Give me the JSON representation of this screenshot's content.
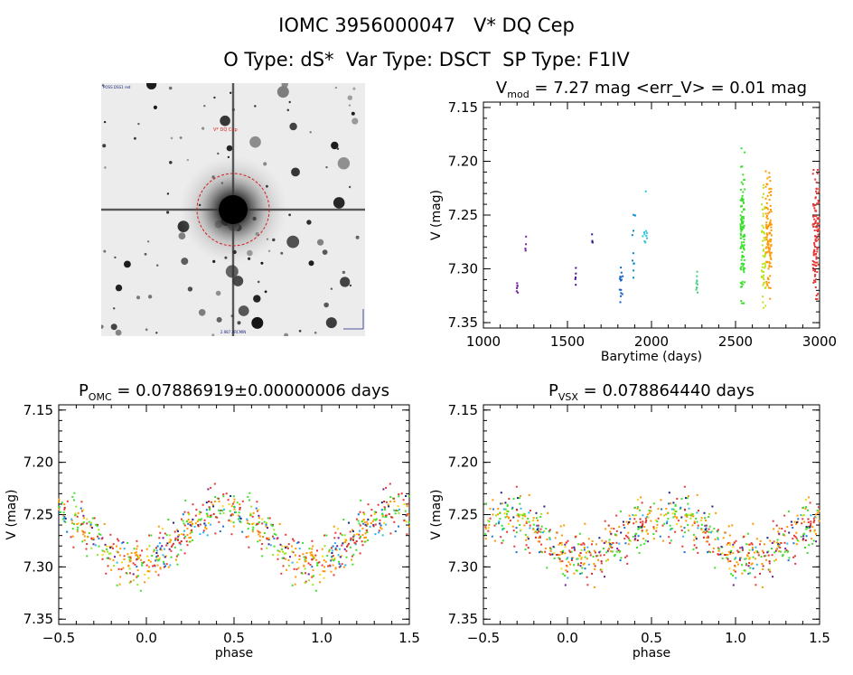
{
  "header": {
    "title": "IOMC 3956000047   V* DQ Cep",
    "subtitle": "O Type: dS*  Var Type: DSCT  SP Type: F1IV"
  },
  "finder": {
    "target_label": "V* DQ Cep",
    "corner_top_left": "POSS DSS1 red",
    "bottom_label": "2.987 ARCMIN",
    "target_marker_color": "#d42020"
  },
  "chart_data": [
    {
      "id": "lightcurve",
      "type": "scatter",
      "title": "V_mod = 7.27 mag <err_V> = 0.01 mag",
      "title_parts": {
        "pre": "V",
        "sub": "mod",
        "post": " = 7.27 mag <err_V> = 0.01 mag"
      },
      "xlabel": "Barytime (days)",
      "ylabel": "V (mag)",
      "xlim": [
        1000,
        3000
      ],
      "ylim": [
        7.355,
        7.145
      ],
      "y_inverted": true,
      "xticks": [
        1000,
        1500,
        2000,
        2500,
        3000
      ],
      "xtick_labels": [
        "1000",
        "1500",
        "2000",
        "2500",
        "3000"
      ],
      "yticks": [
        7.15,
        7.2,
        7.25,
        7.3,
        7.35
      ],
      "ytick_labels": [
        "7.15",
        "7.20",
        "7.25",
        "7.30",
        "7.35"
      ],
      "grid": false,
      "color_map": "time: purple → blue → cyan → green → yellow → orange → red",
      "series": [
        {
          "x_range": [
            1195,
            1205
          ],
          "y_range": [
            7.305,
            7.325
          ],
          "color": "#6a1b9a",
          "density": 6
        },
        {
          "x_range": [
            1248,
            1255
          ],
          "y_range": [
            7.27,
            7.285
          ],
          "color": "#7b1fa2",
          "density": 5
        },
        {
          "x_range": [
            1545,
            1552
          ],
          "y_range": [
            7.298,
            7.318
          ],
          "color": "#4a148c",
          "density": 5
        },
        {
          "x_range": [
            1645,
            1652
          ],
          "y_range": [
            7.262,
            7.285
          ],
          "color": "#311b92",
          "density": 4
        },
        {
          "x_range": [
            1810,
            1830
          ],
          "y_range": [
            7.298,
            7.338
          ],
          "color": "#1565c0",
          "density": 14
        },
        {
          "x_range": [
            1885,
            1905
          ],
          "y_range": [
            7.232,
            7.322
          ],
          "color": "#0288d1",
          "density": 10
        },
        {
          "x_range": [
            1945,
            1975
          ],
          "y_range": [
            7.228,
            7.303
          ],
          "color": "#26c6da",
          "density": 10
        },
        {
          "x_range": [
            2265,
            2275
          ],
          "y_range": [
            7.295,
            7.322
          ],
          "color": "#43d17a",
          "density": 10
        },
        {
          "x_range": [
            2530,
            2555
          ],
          "y_range": [
            7.188,
            7.332
          ],
          "color": "#3ae02c",
          "density": 110
        },
        {
          "x_range": [
            2655,
            2680
          ],
          "y_range": [
            7.222,
            7.342
          ],
          "color": "#b8e418",
          "density": 50
        },
        {
          "x_range": [
            2680,
            2715
          ],
          "y_range": [
            7.208,
            7.33
          ],
          "color": "#ff9800",
          "density": 110
        },
        {
          "x_range": [
            2960,
            2998
          ],
          "y_range": [
            7.208,
            7.328
          ],
          "color": "#e53935",
          "density": 110
        }
      ]
    },
    {
      "id": "phase_omc",
      "type": "scatter",
      "title": "P_OMC = 0.07886919±0.00000006 days",
      "title_parts": {
        "pre": "P",
        "sub": "OMC",
        "post": " = 0.07886919±0.00000006 days"
      },
      "xlabel": "phase",
      "ylabel": "V (mag)",
      "xlim": [
        -0.5,
        1.5
      ],
      "ylim": [
        7.355,
        7.145
      ],
      "y_inverted": true,
      "xticks": [
        -0.5,
        0.0,
        0.5,
        1.0,
        1.5
      ],
      "xtick_labels": [
        "−0.5",
        "0.0",
        "0.5",
        "1.0",
        "1.5"
      ],
      "yticks": [
        7.15,
        7.2,
        7.25,
        7.3,
        7.35
      ],
      "ytick_labels": [
        "7.15",
        "7.20",
        "7.25",
        "7.30",
        "7.35"
      ],
      "grid": false,
      "mean_mag": 7.27,
      "amplitude": 0.025,
      "max_at_phase": 0.45,
      "scatter": 0.022,
      "points": 420
    },
    {
      "id": "phase_vsx",
      "type": "scatter",
      "title": "P_VSX = 0.078864440 days",
      "title_parts": {
        "pre": "P",
        "sub": "VSX",
        "post": " = 0.078864440 days"
      },
      "xlabel": "phase",
      "ylabel": "V (mag)",
      "xlim": [
        -0.5,
        1.5
      ],
      "ylim": [
        7.355,
        7.145
      ],
      "y_inverted": true,
      "xticks": [
        -0.5,
        0.0,
        0.5,
        1.0,
        1.5
      ],
      "xtick_labels": [
        "−0.5",
        "0.0",
        "0.5",
        "1.0",
        "1.5"
      ],
      "yticks": [
        7.15,
        7.2,
        7.25,
        7.3,
        7.35
      ],
      "ytick_labels": [
        "7.15",
        "7.20",
        "7.25",
        "7.30",
        "7.35"
      ],
      "grid": false,
      "mean_mag": 7.27,
      "amplitude": 0.02,
      "max_at_phase": 0.6,
      "scatter": 0.024,
      "points": 420
    }
  ],
  "palette": [
    "#1a237e",
    "#1976d2",
    "#29b6f6",
    "#3ae02c",
    "#9be51a",
    "#f5d90a",
    "#ff9800",
    "#e53935",
    "#c62828",
    "#6a1b9a"
  ]
}
